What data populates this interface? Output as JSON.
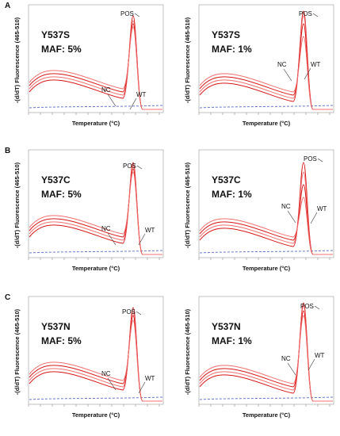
{
  "figure": {
    "y_axis_label": "-(d/dT) Fluorescence (465-510)",
    "x_axis_label": "Temperature (°C)",
    "rows": [
      {
        "letter": "A",
        "panels": [
          {
            "mutation": "Y537S",
            "maf": "MAF: 5%",
            "pos": "POS",
            "nc": "NC",
            "wt": "WT"
          },
          {
            "mutation": "Y537S",
            "maf": "MAF: 1%",
            "pos": "POS",
            "nc": "NC",
            "wt": "WT"
          }
        ]
      },
      {
        "letter": "B",
        "panels": [
          {
            "mutation": "Y537C",
            "maf": "MAF: 5%",
            "pos": "POS",
            "nc": "NC",
            "wt": "WT"
          },
          {
            "mutation": "Y537C",
            "maf": "MAF: 1%",
            "pos": "POS",
            "nc": "NC",
            "wt": "WT"
          }
        ]
      },
      {
        "letter": "C",
        "panels": [
          {
            "mutation": "Y537N",
            "maf": "MAF: 5%",
            "pos": "POS",
            "nc": "NC",
            "wt": "WT"
          },
          {
            "mutation": "Y537N",
            "maf": "MAF: 1%",
            "pos": "POS",
            "nc": "NC",
            "wt": "WT"
          }
        ]
      }
    ]
  }
}
